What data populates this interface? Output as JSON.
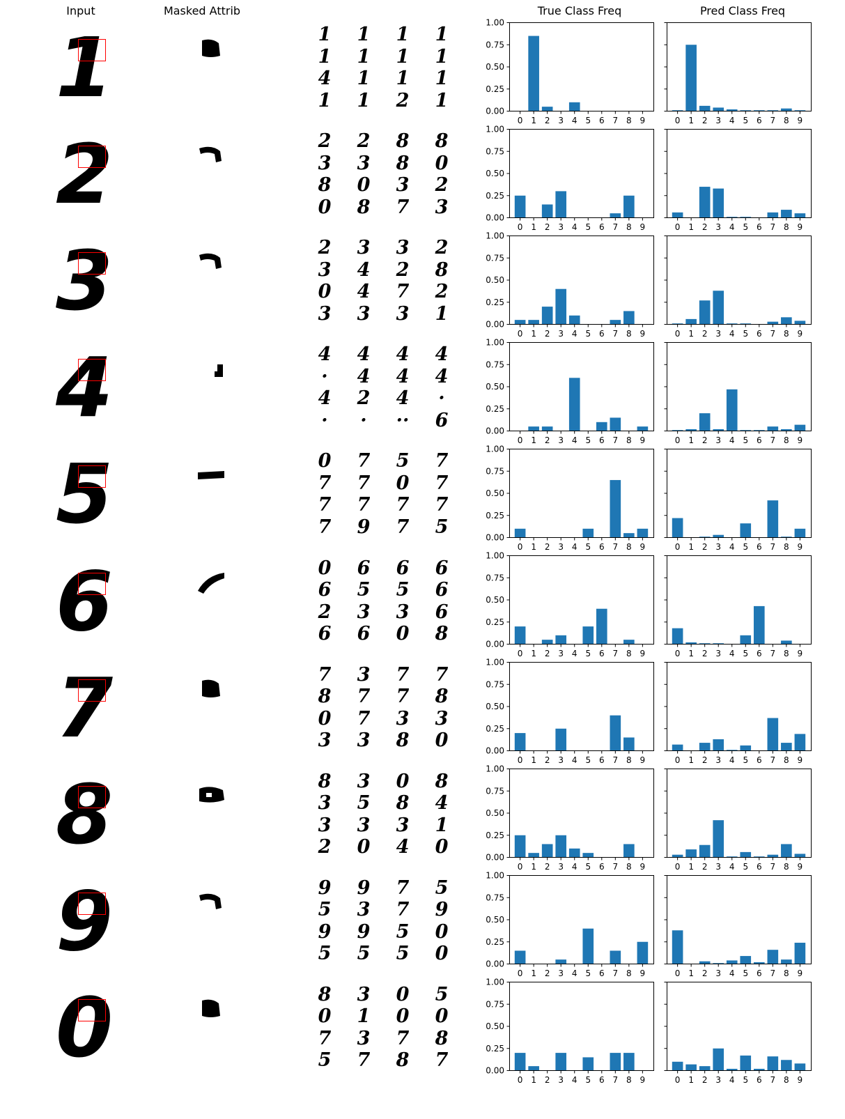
{
  "columns": {
    "input": "Input",
    "masked": "Masked Attrib",
    "true_freq": "True Class Freq",
    "pred_freq": "Pred Class Freq"
  },
  "colors": {
    "bar": "#1f77b4",
    "box": "#ff0000",
    "ink": "#000000"
  },
  "rows": [
    {
      "input_digit": "1",
      "masked_shape": "blob",
      "neighbors": [
        "1",
        "1",
        "1",
        "1",
        "1",
        "1",
        "1",
        "1",
        "4",
        "1",
        "1",
        "1",
        "1",
        "1",
        "2",
        "1"
      ]
    },
    {
      "input_digit": "2",
      "masked_shape": "hook",
      "neighbors": [
        "2",
        "2",
        "8",
        "8",
        "3",
        "3",
        "8",
        "0",
        "8",
        "0",
        "3",
        "2",
        "0",
        "8",
        "7",
        "3"
      ]
    },
    {
      "input_digit": "3",
      "masked_shape": "hook",
      "neighbors": [
        "2",
        "3",
        "3",
        "2",
        "3",
        "4",
        "2",
        "8",
        "0",
        "4",
        "7",
        "2",
        "3",
        "3",
        "3",
        "1"
      ]
    },
    {
      "input_digit": "4",
      "masked_shape": "stub",
      "neighbors": [
        "4",
        "4",
        "4",
        "4",
        "·",
        "4",
        "4",
        "4",
        "4",
        "2",
        "4",
        "·",
        "·",
        "·",
        "··",
        "6"
      ]
    },
    {
      "input_digit": "5",
      "masked_shape": "bar",
      "neighbors": [
        "0",
        "7",
        "5",
        "7",
        "7",
        "7",
        "0",
        "7",
        "7",
        "7",
        "7",
        "7",
        "7",
        "9",
        "7",
        "5"
      ]
    },
    {
      "input_digit": "6",
      "masked_shape": "slash",
      "neighbors": [
        "0",
        "6",
        "6",
        "6",
        "6",
        "5",
        "5",
        "6",
        "2",
        "3",
        "3",
        "6",
        "6",
        "6",
        "0",
        "8"
      ]
    },
    {
      "input_digit": "7",
      "masked_shape": "blob",
      "neighbors": [
        "7",
        "3",
        "7",
        "7",
        "8",
        "7",
        "7",
        "8",
        "0",
        "7",
        "3",
        "3",
        "3",
        "3",
        "8",
        "0"
      ]
    },
    {
      "input_digit": "8",
      "masked_shape": "ring",
      "neighbors": [
        "8",
        "3",
        "0",
        "8",
        "3",
        "5",
        "8",
        "4",
        "3",
        "3",
        "3",
        "1",
        "2",
        "0",
        "4",
        "0"
      ]
    },
    {
      "input_digit": "9",
      "masked_shape": "hook",
      "neighbors": [
        "9",
        "9",
        "7",
        "5",
        "5",
        "3",
        "7",
        "9",
        "9",
        "9",
        "5",
        "0",
        "5",
        "5",
        "5",
        "0"
      ]
    },
    {
      "input_digit": "0",
      "masked_shape": "blob",
      "neighbors": [
        "8",
        "3",
        "0",
        "5",
        "0",
        "1",
        "0",
        "0",
        "7",
        "3",
        "7",
        "8",
        "5",
        "7",
        "8",
        "7"
      ]
    }
  ],
  "chart_data": {
    "type": "bar",
    "categories": [
      "0",
      "1",
      "2",
      "3",
      "4",
      "5",
      "6",
      "7",
      "8",
      "9"
    ],
    "ylim": [
      0,
      1.0
    ],
    "yticks": [
      "0.00",
      "0.25",
      "0.50",
      "0.75",
      "1.00"
    ],
    "rows": [
      {
        "true": [
          0,
          0.85,
          0.05,
          0,
          0.1,
          0,
          0,
          0,
          0,
          0
        ],
        "pred": [
          0.01,
          0.75,
          0.06,
          0.04,
          0.02,
          0.01,
          0.01,
          0.01,
          0.03,
          0.01
        ]
      },
      {
        "true": [
          0.25,
          0,
          0.15,
          0.3,
          0,
          0,
          0,
          0.05,
          0.25,
          0
        ],
        "pred": [
          0.06,
          0,
          0.35,
          0.33,
          0.01,
          0.01,
          0,
          0.06,
          0.09,
          0.05
        ]
      },
      {
        "true": [
          0.05,
          0.05,
          0.2,
          0.4,
          0.1,
          0,
          0,
          0.05,
          0.15,
          0
        ],
        "pred": [
          0.01,
          0.06,
          0.27,
          0.38,
          0.01,
          0.01,
          0,
          0.03,
          0.08,
          0.04
        ]
      },
      {
        "true": [
          0,
          0.05,
          0.05,
          0,
          0.6,
          0,
          0.1,
          0.15,
          0,
          0.05
        ],
        "pred": [
          0.01,
          0.02,
          0.2,
          0.02,
          0.47,
          0.01,
          0.01,
          0.05,
          0.02,
          0.07
        ]
      },
      {
        "true": [
          0.1,
          0,
          0,
          0,
          0,
          0.1,
          0,
          0.65,
          0.05,
          0.1
        ],
        "pred": [
          0.22,
          0,
          0.01,
          0.03,
          0,
          0.16,
          0,
          0.42,
          0.01,
          0.1
        ]
      },
      {
        "true": [
          0.2,
          0,
          0.05,
          0.1,
          0,
          0.2,
          0.4,
          0,
          0.05,
          0
        ],
        "pred": [
          0.18,
          0.02,
          0.01,
          0.01,
          0,
          0.1,
          0.43,
          0,
          0.04,
          0
        ]
      },
      {
        "true": [
          0.2,
          0,
          0,
          0.25,
          0,
          0,
          0,
          0.4,
          0.15,
          0
        ],
        "pred": [
          0.07,
          0,
          0.09,
          0.13,
          0.01,
          0.06,
          0,
          0.37,
          0.09,
          0.19
        ]
      },
      {
        "true": [
          0.25,
          0.05,
          0.15,
          0.25,
          0.1,
          0.05,
          0,
          0,
          0.15,
          0
        ],
        "pred": [
          0.03,
          0.09,
          0.14,
          0.42,
          0.01,
          0.06,
          0.01,
          0.03,
          0.15,
          0.04
        ]
      },
      {
        "true": [
          0.15,
          0,
          0,
          0.05,
          0,
          0.4,
          0,
          0.15,
          0,
          0.25
        ],
        "pred": [
          0.38,
          0,
          0.03,
          0.01,
          0.04,
          0.09,
          0.02,
          0.16,
          0.05,
          0.24
        ]
      },
      {
        "true": [
          0.2,
          0.05,
          0,
          0.2,
          0,
          0.15,
          0,
          0.2,
          0.2,
          0
        ],
        "pred": [
          0.1,
          0.07,
          0.05,
          0.25,
          0.02,
          0.17,
          0.02,
          0.16,
          0.12,
          0.08
        ]
      }
    ]
  }
}
